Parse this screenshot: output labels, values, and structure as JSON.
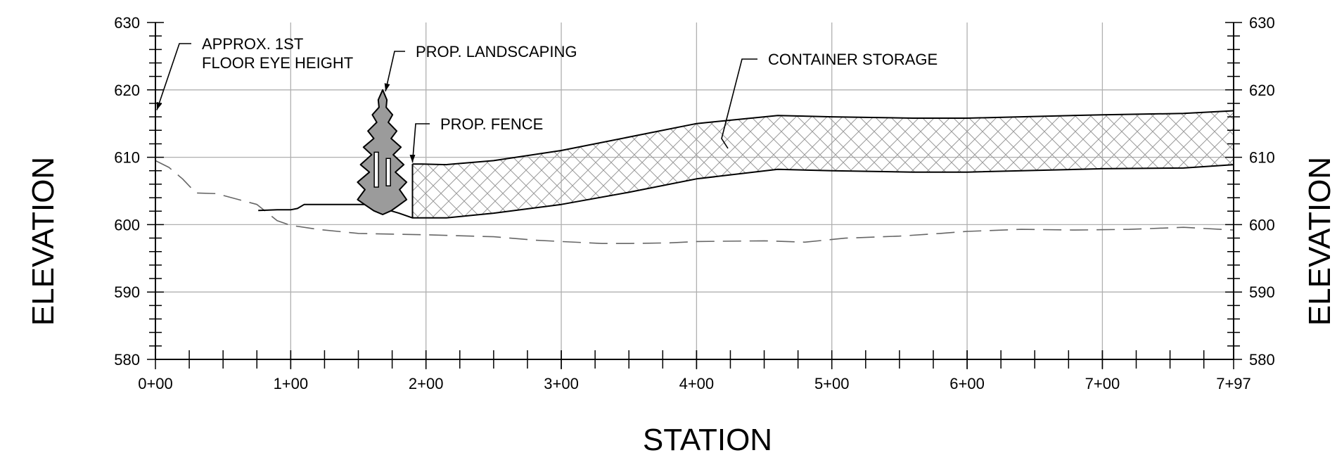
{
  "chart_data": {
    "type": "line",
    "title": "",
    "xlabel": "STATION",
    "ylabel": "ELEVATION",
    "ylabel_right": "ELEVATION",
    "xlim": [
      0,
      797
    ],
    "ylim": [
      580,
      630
    ],
    "grid": true,
    "x_ticks": [
      0,
      100,
      200,
      300,
      400,
      500,
      600,
      700,
      797
    ],
    "x_tick_labels": [
      "0+00",
      "1+00",
      "2+00",
      "3+00",
      "4+00",
      "5+00",
      "6+00",
      "7+00",
      "7+97"
    ],
    "y_ticks": [
      580,
      590,
      600,
      610,
      620,
      630
    ],
    "y_tick_labels": [
      "580",
      "590",
      "600",
      "610",
      "620",
      "630"
    ],
    "series": [
      {
        "key": "existing-ground",
        "style": "dashed",
        "color": "#666666",
        "x": [
          0,
          10,
          20,
          30,
          45,
          60,
          75,
          90,
          100,
          120,
          150,
          200,
          250,
          280,
          300,
          330,
          350,
          380,
          400,
          450,
          480,
          510,
          550,
          580,
          600,
          640,
          680,
          720,
          760,
          797
        ],
        "y": [
          609.5,
          608.5,
          606.8,
          604.7,
          604.6,
          603.8,
          603.0,
          600.6,
          599.9,
          599.3,
          598.7,
          598.5,
          598.2,
          597.7,
          597.5,
          597.2,
          597.2,
          597.3,
          597.5,
          597.6,
          597.4,
          598.0,
          598.3,
          598.7,
          599.0,
          599.3,
          599.2,
          599.3,
          599.6,
          599.2
        ]
      },
      {
        "key": "proposed-grade",
        "style": "solid",
        "color": "#000000",
        "x": [
          76,
          90,
          100,
          105,
          110,
          120,
          150,
          165,
          170,
          180,
          190,
          197,
          215,
          250,
          300,
          350,
          400,
          460,
          500,
          560,
          600,
          700,
          760,
          797
        ],
        "y": [
          602.1,
          602.2,
          602.2,
          602.4,
          603.0,
          603.0,
          603.0,
          603.0,
          602.3,
          601.7,
          601.0,
          601.0,
          601.0,
          601.7,
          603.0,
          604.8,
          606.8,
          608.2,
          608.0,
          607.8,
          607.8,
          608.3,
          608.4,
          608.9
        ]
      },
      {
        "key": "container-storage-top",
        "style": "solid",
        "color": "#000000",
        "x": [
          190,
          197,
          215,
          250,
          300,
          350,
          400,
          460,
          500,
          560,
          600,
          700,
          760,
          797
        ],
        "y": [
          609.0,
          609.0,
          608.9,
          609.5,
          611.0,
          613.0,
          615.0,
          616.2,
          616.0,
          615.8,
          615.8,
          616.3,
          616.5,
          616.9
        ]
      },
      {
        "key": "container-storage-bottom",
        "style": "hidden",
        "color": "#000000",
        "x": [
          190,
          197,
          215,
          250,
          300,
          350,
          400,
          460,
          500,
          560,
          600,
          700,
          760,
          797
        ],
        "y": [
          601.0,
          601.0,
          601.0,
          601.7,
          603.0,
          604.8,
          606.8,
          608.2,
          608.0,
          607.8,
          607.8,
          608.3,
          608.4,
          608.9
        ]
      },
      {
        "key": "prop-fence",
        "style": "solid",
        "color": "#000000",
        "x": [
          190,
          190
        ],
        "y": [
          601.0,
          609.0
        ]
      }
    ],
    "hatched_region": {
      "label": "CONTAINER STORAGE",
      "upper_series": "container-storage-top",
      "lower_series": "container-storage-bottom",
      "pattern": "crosshatch"
    },
    "tree_symbol": {
      "x": 168,
      "base_y": 601.5,
      "top_y": 620.0,
      "fill": "#9b9b9b"
    },
    "annotations": [
      {
        "key": "approx-eye-height",
        "lines": [
          "APPROX. 1ST",
          "FLOOR EYE HEIGHT"
        ]
      },
      {
        "key": "prop-landscaping",
        "lines": [
          "PROP. LANDSCAPING"
        ]
      },
      {
        "key": "prop-fence",
        "lines": [
          "PROP. FENCE"
        ]
      },
      {
        "key": "container-storage",
        "lines": [
          "CONTAINER STORAGE"
        ]
      }
    ]
  }
}
